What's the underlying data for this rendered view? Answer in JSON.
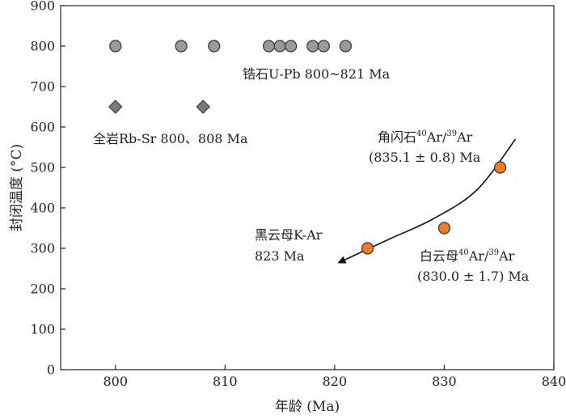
{
  "chart_data": {
    "type": "scatter",
    "xlabel": "年龄 (Ma)",
    "ylabel": "封闭温度 (°C)",
    "xlim": [
      795,
      840
    ],
    "ylim": [
      0,
      900
    ],
    "xticks": [
      "800",
      "810",
      "820",
      "830",
      "840"
    ],
    "yticks": [
      "0",
      "100",
      "200",
      "300",
      "400",
      "500",
      "600",
      "700",
      "800",
      "900"
    ],
    "grid": false,
    "series": [
      {
        "marker": "circle",
        "color": "#9a9a9a",
        "x": [
          800,
          806,
          809,
          814,
          815,
          816,
          818,
          819,
          821
        ],
        "y": [
          800,
          800,
          800,
          800,
          800,
          800,
          800,
          800,
          800
        ]
      },
      {
        "marker": "diamond",
        "color": "#7a7a7a",
        "x": [
          800,
          808
        ],
        "y": [
          650,
          650
        ]
      },
      {
        "marker": "circle",
        "color": "#f07a2a",
        "x": [
          823,
          830,
          835.1
        ],
        "y": [
          300,
          350,
          500
        ]
      }
    ],
    "trend_arrow": {
      "x": [
        836.5,
        833,
        829,
        825,
        820.4
      ],
      "y": [
        570,
        445,
        373,
        323,
        265
      ]
    },
    "annotations": {
      "zircon": {
        "text": "锆石U-Pb 800~821 Ma"
      },
      "whole_rock": {
        "text": "全岩Rb-Sr 800、808 Ma"
      },
      "hornblende": {
        "line1_pre": "角闪石",
        "sup1": "40",
        "mid": "Ar/",
        "sup2": "39",
        "post": "Ar",
        "line2": "(835.1 ± 0.8) Ma"
      },
      "biotite": {
        "line1": "黑云母K-Ar",
        "line2": "823 Ma"
      },
      "muscovite": {
        "line1_pre": "白云母",
        "sup1": "40",
        "mid": "Ar/",
        "sup2": "39",
        "post": "Ar",
        "line2": "(830.0 ± 1.7) Ma"
      }
    }
  }
}
